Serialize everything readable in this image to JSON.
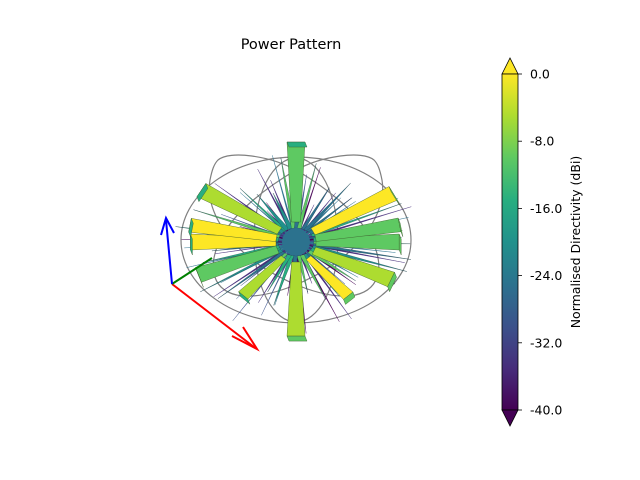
{
  "chart_data": {
    "type": "3d-surface",
    "title": "Power Pattern",
    "colorbar": {
      "label": "Normalised Directivity (dBi)",
      "colormap": "viridis",
      "ticks": [
        "0.0",
        "-8.0",
        "-16.0",
        "-24.0",
        "-32.0",
        "-40.0"
      ],
      "tick_values": [
        0,
        -8,
        -16,
        -24,
        -32,
        -40
      ],
      "range": [
        -40,
        0
      ],
      "extend": "both"
    },
    "axes_triad": {
      "x_color": "#ff0000",
      "y_color": "#008000",
      "z_color": "#0000ff"
    },
    "reference_rings_color": "#808080"
  }
}
